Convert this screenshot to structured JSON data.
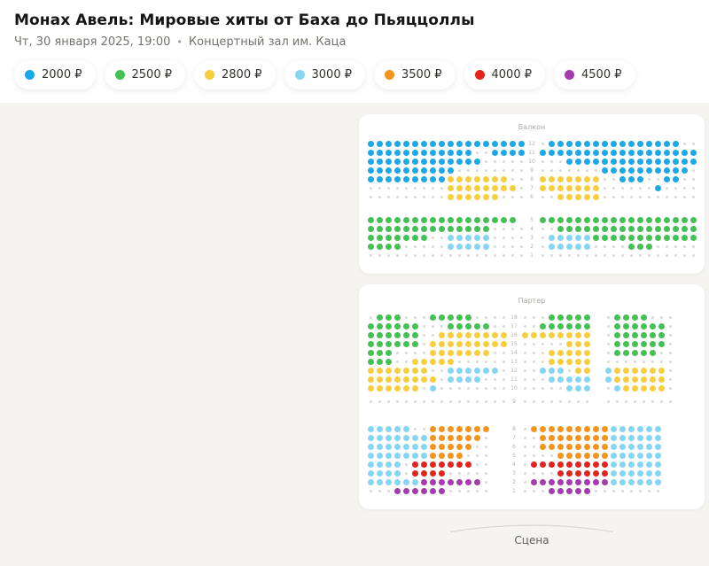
{
  "header": {
    "title": "Монах Авель: Мировые хиты от Баха до Пьяццоллы",
    "date": "Чт, 30 января 2025, 19:00",
    "separator": "•",
    "venue": "Концертный зал им. Каца"
  },
  "legend": [
    {
      "code": "b",
      "label": "2000 ₽",
      "color": "#1ba8e9"
    },
    {
      "code": "g",
      "label": "2500 ₽",
      "color": "#43c152"
    },
    {
      "code": "y",
      "label": "2800 ₽",
      "color": "#f8ce3d"
    },
    {
      "code": "c",
      "label": "3000 ₽",
      "color": "#84d6f2"
    },
    {
      "code": "o",
      "label": "3500 ₽",
      "color": "#f5941d"
    },
    {
      "code": "r",
      "label": "4000 ₽",
      "color": "#e2241d"
    },
    {
      "code": "p",
      "label": "4500 ₽",
      "color": "#a63ab1"
    }
  ],
  "seats_meta": {
    "unavailable_color": "#dadad5",
    "unavailable_char": ".",
    "empty_char": " "
  },
  "balcony": {
    "label": "Балкон",
    "upper": [
      {
        "n": "12",
        "left": "bbbbbbbbbbbbbbbbbb",
        "right": ".bbbbbbbbbbbbbbb.."
      },
      {
        "n": "11",
        "left": "bbbbbbbbbbbb..bbbb",
        "right": "bbbbbbbbbbbbbbbbbb"
      },
      {
        "n": "10",
        "left": "bbbbbbbbbbbbb.....",
        "right": "...bbbbbbbbbbbbbbb"
      },
      {
        "n": "9",
        "left": "bbbbbbbbbb........",
        "right": ".......bbbbbbbbbb."
      },
      {
        "n": "8",
        "left": "bbbbbbbbbyyyyyyy..",
        "right": "yyyyyyy..bbb..bb.."
      },
      {
        "n": "7",
        "left": ".........yyyyyyyy.",
        "right": "yyyyyyy......b...."
      },
      {
        "n": "6",
        "left": ".........yyyyyy...",
        "right": "..yyyyy..........."
      }
    ],
    "lower": [
      {
        "n": "5",
        "left": "ggggggggggggggggg ",
        "right": "gggggggggggggggggg"
      },
      {
        "n": "4",
        "left": "gggggggggggggg....",
        "right": "..gggggggggggggggg"
      },
      {
        "n": "3",
        "left": "ggggggg..ccccc....",
        "right": ".cccccgggggggggggg"
      },
      {
        "n": "2",
        "left": "gggg.....ccccc....",
        "right": ".ccccc....ggg....."
      },
      {
        "n": "1",
        "left": "..................",
        "right": ".................."
      }
    ]
  },
  "parterre": {
    "label": "Партер",
    "upper": [
      {
        "n": "18",
        "left": ".ggg...ggggg....",
        "center": "...ggggg",
        "right": ".gggg..."
      },
      {
        "n": "17",
        "left": "gggggg...ggggg..",
        "center": "..gggggg",
        "right": ".gggggg."
      },
      {
        "n": "16",
        "left": "gggggg..yyyyyyyy",
        "center": "yyyyyyyy",
        "right": ".gggggg."
      },
      {
        "n": "15",
        "left": "gggggg.yyyyyyyyy",
        "center": ".....yyy",
        "right": ".gggggg."
      },
      {
        "n": "14",
        "left": "ggg....yyyyyyy..",
        "center": "...yyyyy",
        "right": ".ggggg.."
      },
      {
        "n": "13",
        "left": "ggg..yyyyy......",
        "center": "...yyyyy",
        "right": "........"
      },
      {
        "n": "12",
        "left": "yyyyyyy..cccccc.",
        "center": "..ccc.yy",
        "right": "cyyyyyy."
      },
      {
        "n": "11",
        "left": "yyyyyyyy.cccc...",
        "center": "...ccccc",
        "right": "cyyyyyy."
      },
      {
        "n": "10",
        "left": "yyyyyy.c........",
        "center": ".....ccc",
        "right": ".cyyyyy."
      },
      {
        "n": "9",
        "left": "................",
        "center": "........",
        "right": "........"
      }
    ],
    "lower": [
      {
        "n": "8",
        "left": "ccccc..ooooooo",
        "right": ".ooooooooocccccc"
      },
      {
        "n": "7",
        "left": "cccccccoooooo.",
        "right": "..oooooooocccccc"
      },
      {
        "n": "6",
        "left": "cccccccooooo..",
        "right": "..oooooooocccccc"
      },
      {
        "n": "5",
        "left": "cccccccoooo...",
        "right": "....oooooocccccc"
      },
      {
        "n": "4",
        "left": "cccc.rrrrrrr..",
        "right": ".rrrrrrrrrcccccc"
      },
      {
        "n": "3",
        "left": "cccc.rrrr.....",
        "right": "....rrrrrrcccccc"
      },
      {
        "n": "2",
        "left": "ccccccppppppp.",
        "right": ".pppppppppcccccc"
      },
      {
        "n": "1",
        "left": "...pppppp.....",
        "right": "...ppppp........"
      }
    ]
  },
  "stage_label": "Сцена"
}
